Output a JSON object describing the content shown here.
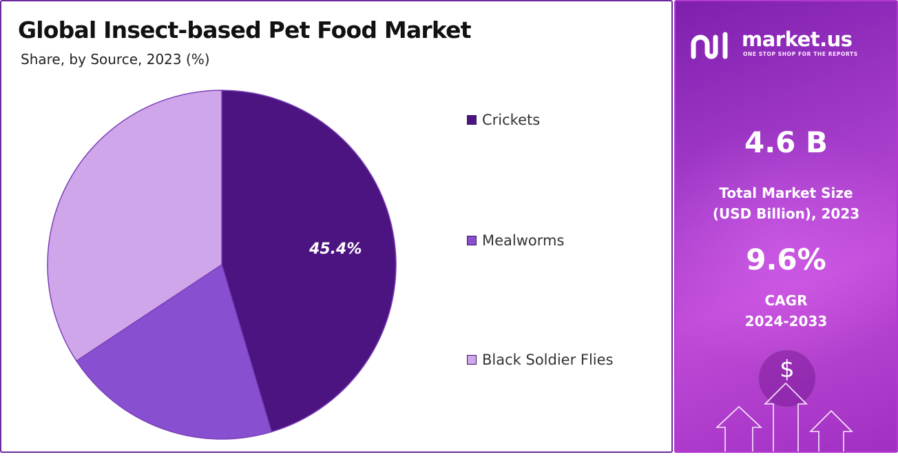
{
  "chart_data": {
    "type": "pie",
    "title": "Global Insect-based Pet Food Market",
    "subtitle": "Share, by Source, 2023 (%)",
    "slices": [
      {
        "name": "Crickets",
        "value": 45.4,
        "color": "#4c1480",
        "label": "45.4%"
      },
      {
        "name": "Mealworms",
        "value": 20.3,
        "color": "#8850d0",
        "label": ""
      },
      {
        "name": "Black Soldier Flies",
        "value": 34.3,
        "color": "#d0a6ea",
        "label": ""
      }
    ],
    "legend_position": "right"
  },
  "brand": {
    "name": "market.us",
    "tagline": "ONE STOP SHOP FOR THE REPORTS"
  },
  "stats": {
    "market_size_value": "4.6 B",
    "market_size_label_line1": "Total Market Size",
    "market_size_label_line2": "(USD Billion), 2023",
    "cagr_value": "9.6%",
    "cagr_label_line1": "CAGR",
    "cagr_label_line2": "2024-2033"
  },
  "decor": {
    "dollar_symbol": "$",
    "icons": [
      "dollar-coin-icon",
      "up-arrow-icon"
    ]
  },
  "colors": {
    "panel_border": "#6a2a9a",
    "side_gradient_start": "#7f1fae",
    "side_gradient_end": "#c14bd8"
  }
}
